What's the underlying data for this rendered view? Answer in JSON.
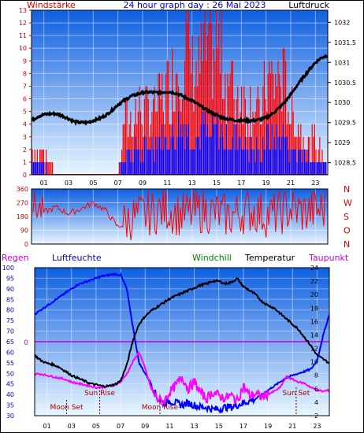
{
  "title": "24 hour graph day : 26 Mai 2023",
  "colors": {
    "bg_top": "#0f5fe0",
    "bg_bottom": "#e8f6ff",
    "wind_avg": "#0000ff",
    "wind_gust": "#ff0000",
    "pressure": "#000000",
    "direction": "#ff0000",
    "humidity": "#0000ff",
    "temperature": "#000000",
    "dewpoint": "#ff00ff",
    "windchill": "#008000",
    "rain": "#cc00cc",
    "axis_red": "#cc0000",
    "axis_blue": "#0000cc"
  },
  "chart_data": [
    {
      "type": "line",
      "title": "24 hour graph day : 26 Mai 2023",
      "left_label": "Windstärke",
      "right_label": "Luftdruck",
      "x_ticks": [
        "01",
        "03",
        "05",
        "07",
        "09",
        "11",
        "13",
        "15",
        "17",
        "19",
        "21",
        "23"
      ],
      "xlim": [
        0,
        24
      ],
      "ylim_left": [
        0,
        13
      ],
      "ylim_right": [
        1028.2,
        1032.3
      ],
      "y_ticks_left": [
        "0",
        "1",
        "2",
        "3",
        "4",
        "5",
        "6",
        "7",
        "8",
        "9",
        "10",
        "11",
        "12",
        "13"
      ],
      "y_ticks_right": [
        "1028.5",
        "1029",
        "1029.5",
        "1030",
        "1030.5",
        "1031",
        "1031.5",
        "1032"
      ],
      "pressure_series": {
        "x": [
          0,
          0.5,
          1,
          1.5,
          2,
          2.5,
          3,
          3.5,
          4,
          4.5,
          5,
          5.5,
          6,
          6.5,
          7,
          7.5,
          8,
          8.5,
          9,
          9.5,
          10,
          10.5,
          11,
          11.5,
          12,
          12.5,
          13,
          13.5,
          14,
          14.5,
          15,
          15.5,
          16,
          16.5,
          17,
          17.5,
          18,
          18.5,
          19,
          19.5,
          20,
          20.5,
          21,
          21.5,
          22,
          22.5,
          23,
          23.5,
          24
        ],
        "y": [
          1029.55,
          1029.65,
          1029.7,
          1029.72,
          1029.72,
          1029.67,
          1029.6,
          1029.52,
          1029.5,
          1029.5,
          1029.55,
          1029.6,
          1029.68,
          1029.8,
          1029.95,
          1030.05,
          1030.15,
          1030.2,
          1030.25,
          1030.26,
          1030.25,
          1030.25,
          1030.27,
          1030.25,
          1030.2,
          1030.12,
          1030.05,
          1029.95,
          1029.85,
          1029.76,
          1029.68,
          1029.62,
          1029.58,
          1029.56,
          1029.55,
          1029.55,
          1029.55,
          1029.58,
          1029.62,
          1029.72,
          1029.85,
          1030,
          1030.2,
          1030.42,
          1030.62,
          1030.82,
          1031,
          1031.12,
          1031.18
        ]
      },
      "wind_gust_profile": {
        "x": [
          0,
          0.5,
          1,
          1.5,
          2,
          2.5,
          3,
          3.5,
          4,
          4.5,
          5,
          5.5,
          6,
          6.5,
          7,
          7.5,
          8,
          8.5,
          9,
          9.5,
          10,
          10.5,
          11,
          11.5,
          12,
          12.5,
          13,
          13.5,
          14,
          14.5,
          15,
          15.5,
          16,
          16.5,
          17,
          17.5,
          18,
          18.5,
          19,
          19.5,
          20,
          20.5,
          21,
          21.5,
          22,
          22.5,
          23,
          23.5,
          24
        ],
        "y": [
          2,
          2,
          2,
          1,
          0,
          0,
          0,
          0,
          0,
          0,
          0,
          0,
          0,
          0,
          0,
          5,
          5,
          6,
          6,
          6,
          6,
          7,
          8,
          9,
          11,
          12,
          10,
          9,
          12,
          10,
          13,
          10,
          9,
          7,
          8,
          6,
          7,
          5,
          8,
          9,
          9,
          8,
          6,
          5,
          4,
          3,
          3,
          2,
          2
        ]
      },
      "wind_avg_profile": {
        "x": [
          0,
          0.5,
          1,
          1.5,
          2,
          2.5,
          3,
          3.5,
          4,
          4.5,
          5,
          5.5,
          6,
          6.5,
          7,
          7.5,
          8,
          8.5,
          9,
          9.5,
          10,
          10.5,
          11,
          11.5,
          12,
          12.5,
          13,
          13.5,
          14,
          14.5,
          15,
          15.5,
          16,
          16.5,
          17,
          17.5,
          18,
          18.5,
          19,
          19.5,
          20,
          20.5,
          21,
          21.5,
          22,
          22.5,
          23,
          23.5,
          24
        ],
        "y": [
          1,
          1,
          1,
          0,
          0,
          0,
          0,
          0,
          0,
          0,
          0,
          0,
          0,
          0,
          0,
          2,
          2,
          2,
          2,
          2,
          3,
          3,
          3,
          3,
          4,
          4,
          3,
          3,
          4,
          3,
          4,
          3,
          3,
          3,
          3,
          2,
          2,
          2,
          3,
          3,
          3,
          3,
          2,
          2,
          2,
          1,
          1,
          1,
          1
        ]
      }
    },
    {
      "type": "line",
      "series_name": "wind direction",
      "ylim": [
        0,
        360
      ],
      "y_ticks": [
        "0",
        "90",
        "180",
        "270",
        "360"
      ],
      "right_labels": [
        "N",
        "W",
        "S",
        "O",
        "N"
      ],
      "x_ticks": [
        "01",
        "03",
        "05",
        "07",
        "09",
        "11",
        "13",
        "15",
        "17",
        "19",
        "21",
        "23"
      ],
      "xlim": [
        0,
        24
      ],
      "profile": {
        "x": [
          0,
          1,
          2,
          3,
          4,
          5,
          6,
          7,
          8,
          9,
          10,
          11,
          12,
          13,
          14,
          15,
          16,
          17,
          18,
          19,
          20,
          21,
          22,
          23,
          24
        ],
        "y": [
          260,
          210,
          240,
          200,
          230,
          270,
          220,
          110,
          170,
          190,
          210,
          230,
          190,
          200,
          220,
          200,
          180,
          210,
          220,
          190,
          200,
          230,
          210,
          220,
          230
        ]
      }
    },
    {
      "type": "line",
      "labels": [
        "Regen",
        "Luftfeuchte",
        "Windchill",
        "Temperatur",
        "Taupunkt"
      ],
      "x_ticks": [
        "01",
        "03",
        "05",
        "07",
        "09",
        "11",
        "13",
        "15",
        "17",
        "19",
        "21",
        "23"
      ],
      "xlim": [
        0,
        24
      ],
      "ylim_humidity": [
        30,
        100
      ],
      "y_ticks_humidity": [
        "30",
        "35",
        "40",
        "45",
        "50",
        "55",
        "60",
        "65",
        "70",
        "75",
        "80",
        "85",
        "90",
        "95",
        "100"
      ],
      "ylim_temp": [
        2,
        24
      ],
      "y_ticks_temp": [
        "2",
        "4",
        "6",
        "8",
        "10",
        "12",
        "14",
        "16",
        "18",
        "20",
        "22",
        "24"
      ],
      "rain_label": "0",
      "annotations": [
        {
          "text": "Sun Rise",
          "x": 5.3
        },
        {
          "text": "Moon Set",
          "x": 2.6
        },
        {
          "text": "Moon Rise",
          "x": 10.2
        },
        {
          "text": "Sun Set",
          "x": 21.3
        }
      ],
      "humidity": {
        "x": [
          0,
          0.5,
          1,
          1.5,
          2,
          2.5,
          3,
          3.5,
          4,
          4.5,
          5,
          5.5,
          6,
          6.5,
          7,
          7.5,
          8,
          8.5,
          9,
          9.5,
          10,
          10.5,
          11,
          11.5,
          12,
          12.5,
          13,
          13.5,
          14,
          14.5,
          15,
          15.5,
          16,
          16.5,
          17,
          17.5,
          18,
          18.5,
          19,
          19.5,
          20,
          20.5,
          21,
          21.5,
          22,
          22.5,
          23,
          23.5,
          24
        ],
        "y": [
          78,
          80,
          82,
          84,
          86,
          88,
          90,
          92,
          93,
          94,
          95,
          96,
          96.5,
          97,
          96.5,
          90,
          72,
          55,
          50,
          45,
          38,
          36,
          37,
          36,
          35,
          36,
          35,
          34,
          34,
          33,
          33,
          34,
          34,
          35,
          36,
          37,
          38,
          40,
          42,
          44,
          46,
          48,
          49,
          50,
          51,
          52,
          56,
          68,
          78
        ]
      },
      "temperature": {
        "x": [
          0,
          0.5,
          1,
          1.5,
          2,
          2.5,
          3,
          3.5,
          4,
          4.5,
          5,
          5.5,
          6,
          6.5,
          7,
          7.5,
          8,
          8.5,
          9,
          9.5,
          10,
          10.5,
          11,
          11.5,
          12,
          12.5,
          13,
          13.5,
          14,
          14.5,
          15,
          15.5,
          16,
          16.5,
          17,
          17.5,
          18,
          18.5,
          19,
          19.5,
          20,
          20.5,
          21,
          21.5,
          22,
          22.5,
          23,
          23.5,
          24
        ],
        "y": [
          11,
          10.2,
          9.8,
          9.6,
          9.2,
          8.6,
          8.0,
          7.6,
          7.2,
          6.8,
          6.6,
          6.4,
          6.4,
          6.6,
          7.2,
          9.5,
          13.2,
          15.6,
          16.8,
          17.6,
          18.2,
          18.8,
          19.4,
          19.8,
          20.2,
          20.6,
          21.0,
          21.4,
          21.6,
          22.0,
          22.0,
          21.6,
          21.8,
          22.4,
          21.2,
          20.6,
          20.0,
          19.0,
          18.4,
          18.0,
          17.2,
          16.4,
          15.6,
          14.8,
          13.6,
          12.4,
          11.0,
          10.4,
          9.8
        ]
      },
      "dewpoint": {
        "x": [
          0,
          0.5,
          1,
          1.5,
          2,
          2.5,
          3,
          3.5,
          4,
          4.5,
          5,
          5.5,
          6,
          6.5,
          7,
          7.5,
          8,
          8.5,
          9,
          9.5,
          10,
          10.5,
          11,
          11.5,
          12,
          12.5,
          13,
          13.5,
          14,
          14.5,
          15,
          15.5,
          16,
          16.5,
          17,
          17.5,
          18,
          18.5,
          19,
          19.5,
          20,
          20.5,
          21,
          21.5,
          22,
          22.5,
          23,
          23.5,
          24
        ],
        "y": [
          8.2,
          8.2,
          8.0,
          7.8,
          7.6,
          7.4,
          7.0,
          6.8,
          6.6,
          6.4,
          6.2,
          6.2,
          6.4,
          6.6,
          7.0,
          8.2,
          10.0,
          11.5,
          9.0,
          6.0,
          4.5,
          4.0,
          5.5,
          6.5,
          7.8,
          6.0,
          7.0,
          5.5,
          4.5,
          5.5,
          5.0,
          4.6,
          5.0,
          4.2,
          6.4,
          5.0,
          5.2,
          4.8,
          5.2,
          5.6,
          6.2,
          7.8,
          7.4,
          7.0,
          6.8,
          6.2,
          5.8,
          5.6,
          5.8
        ]
      }
    }
  ]
}
